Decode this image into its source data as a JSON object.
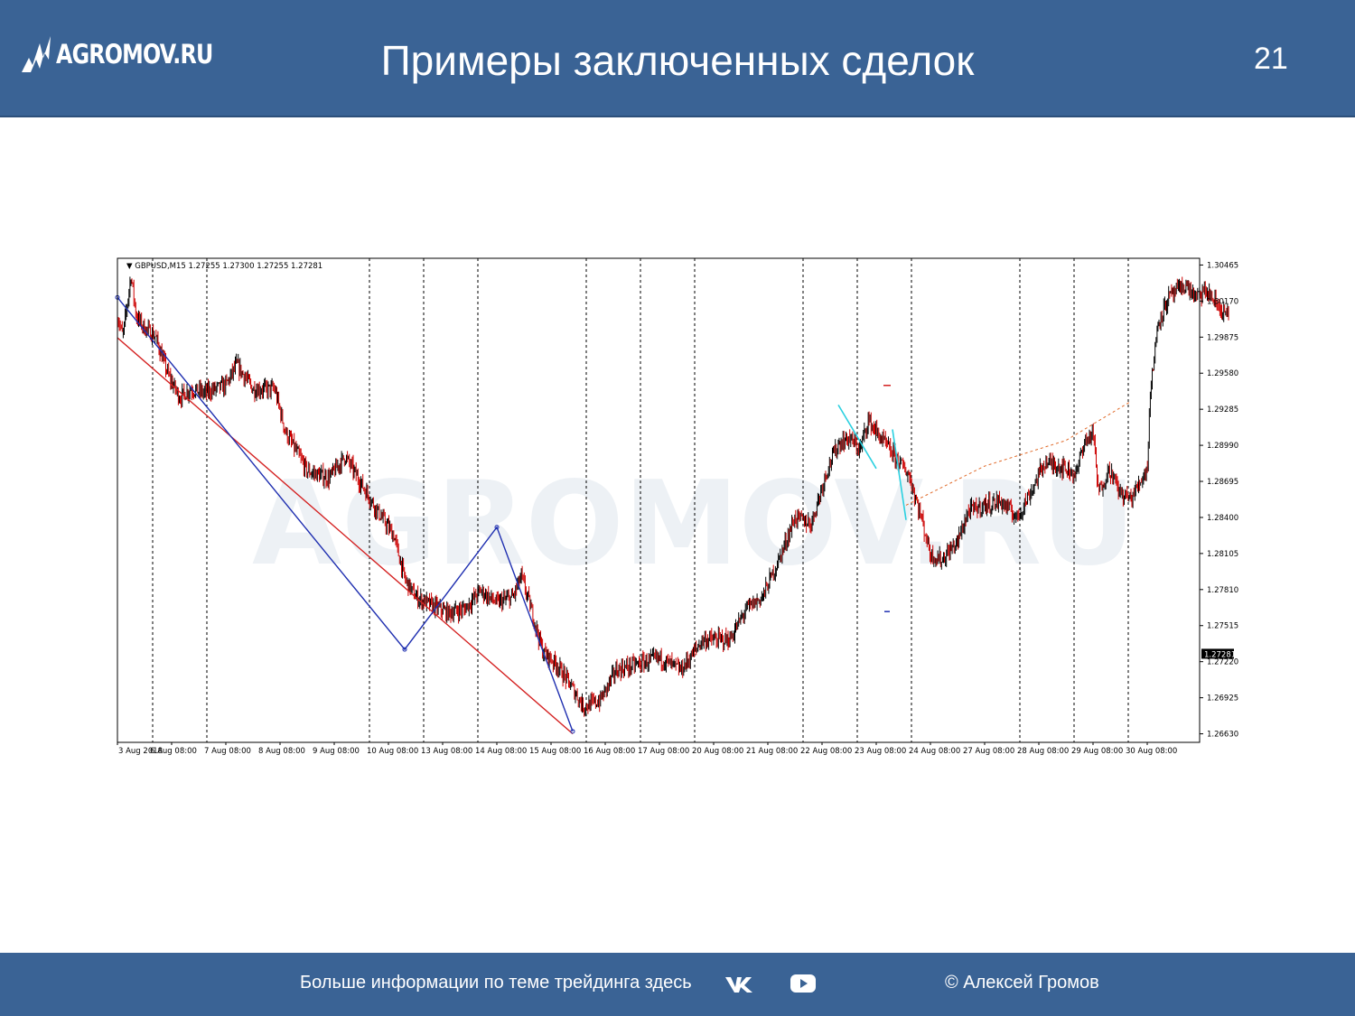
{
  "header": {
    "logo_text": "AGROMOV.RU",
    "title": "Примеры заключенных сделок",
    "page_number": "21"
  },
  "footer": {
    "info_text": "Больше информации по теме трейдинга здесь",
    "copyright": "© Алексей Громов",
    "icons": [
      "vk-icon",
      "youtube-icon"
    ]
  },
  "colors": {
    "header_bg": "#3a6395",
    "candle_up": "#000000",
    "candle_down": "#cc0000",
    "zigzag_blue": "#1f2fb0",
    "trend_red": "#d42020",
    "cyan_line": "#2ad0e0",
    "dashed_arc": "#e06a2a"
  },
  "chart_data": {
    "type": "candlestick",
    "symbol_info": "GBPUSD,M15  1.27255  1.27300  1.27255  1.27281",
    "watermark": "AGROMOV.RU",
    "current_price_label": "1.27281",
    "y_ticks": [
      "1.30465",
      "1.30170",
      "1.29875",
      "1.29580",
      "1.29285",
      "1.28990",
      "1.28695",
      "1.28400",
      "1.28105",
      "1.27810",
      "1.27515",
      "1.27220",
      "1.26925",
      "1.26630"
    ],
    "y_tick_values": [
      1.30465,
      1.3017,
      1.29875,
      1.2958,
      1.29285,
      1.2899,
      1.28695,
      1.284,
      1.28105,
      1.2781,
      1.27515,
      1.2722,
      1.26925,
      1.2663
    ],
    "x_ticks": [
      "3 Aug 2018",
      "6 Aug 08:00",
      "7 Aug 08:00",
      "8 Aug 08:00",
      "9 Aug 08:00",
      "10 Aug 08:00",
      "13 Aug 08:00",
      "14 Aug 08:00",
      "15 Aug 08:00",
      "16 Aug 08:00",
      "17 Aug 08:00",
      "20 Aug 08:00",
      "21 Aug 08:00",
      "22 Aug 08:00",
      "23 Aug 08:00",
      "24 Aug 08:00",
      "27 Aug 08:00",
      "28 Aug 08:00",
      "29 Aug 08:00",
      "30 Aug 08:00"
    ],
    "x_tick_positions": [
      0,
      1,
      2,
      3,
      4,
      5,
      6,
      7,
      8,
      9,
      10,
      11,
      12,
      13,
      14,
      15,
      16,
      17,
      18,
      19
    ],
    "vertical_separators": [
      0.65,
      1.65,
      4.65,
      5.65,
      6.65,
      8.65,
      9.65,
      10.65,
      12.65,
      13.65,
      14.65,
      16.65,
      17.65,
      18.65
    ],
    "price_path": [
      [
        0,
        1.3005
      ],
      [
        0.1,
        1.2988
      ],
      [
        0.25,
        1.3038
      ],
      [
        0.35,
        1.3004
      ],
      [
        0.5,
        1.2995
      ],
      [
        0.7,
        1.2988
      ],
      [
        0.95,
        1.2955
      ],
      [
        1.15,
        1.2938
      ],
      [
        1.35,
        1.2945
      ],
      [
        1.6,
        1.2942
      ],
      [
        2.0,
        1.2948
      ],
      [
        2.2,
        1.2965
      ],
      [
        2.5,
        1.2945
      ],
      [
        2.9,
        1.2945
      ],
      [
        3.1,
        1.291
      ],
      [
        3.5,
        1.2878
      ],
      [
        3.9,
        1.2872
      ],
      [
        4.2,
        1.289
      ],
      [
        4.4,
        1.2875
      ],
      [
        4.8,
        1.2845
      ],
      [
        5.1,
        1.2825
      ],
      [
        5.3,
        1.279
      ],
      [
        5.5,
        1.2775
      ],
      [
        5.8,
        1.2768
      ],
      [
        6.1,
        1.2762
      ],
      [
        6.4,
        1.2765
      ],
      [
        6.7,
        1.278
      ],
      [
        7.0,
        1.277
      ],
      [
        7.3,
        1.2775
      ],
      [
        7.45,
        1.2792
      ],
      [
        7.6,
        1.277
      ],
      [
        7.85,
        1.273
      ],
      [
        8.1,
        1.272
      ],
      [
        8.4,
        1.27
      ],
      [
        8.6,
        1.2685
      ],
      [
        8.9,
        1.269
      ],
      [
        9.2,
        1.2715
      ],
      [
        9.6,
        1.272
      ],
      [
        10.0,
        1.2725
      ],
      [
        10.4,
        1.2715
      ],
      [
        10.8,
        1.274
      ],
      [
        11.3,
        1.274
      ],
      [
        11.6,
        1.2765
      ],
      [
        11.9,
        1.2775
      ],
      [
        12.2,
        1.2805
      ],
      [
        12.5,
        1.284
      ],
      [
        12.8,
        1.2835
      ],
      [
        13.1,
        1.288
      ],
      [
        13.3,
        1.29
      ],
      [
        13.5,
        1.2905
      ],
      [
        13.7,
        1.2895
      ],
      [
        13.85,
        1.292
      ],
      [
        14.0,
        1.291
      ],
      [
        14.3,
        1.2892
      ],
      [
        14.6,
        1.2875
      ],
      [
        14.8,
        1.2845
      ],
      [
        15.0,
        1.281
      ],
      [
        15.2,
        1.2805
      ],
      [
        15.5,
        1.282
      ],
      [
        15.7,
        1.2845
      ],
      [
        16.0,
        1.285
      ],
      [
        16.3,
        1.2853
      ],
      [
        16.6,
        1.284
      ],
      [
        16.9,
        1.2865
      ],
      [
        17.1,
        1.2885
      ],
      [
        17.4,
        1.2882
      ],
      [
        17.7,
        1.2875
      ],
      [
        17.8,
        1.2898
      ],
      [
        18.0,
        1.291
      ],
      [
        18.1,
        1.286
      ],
      [
        18.3,
        1.288
      ],
      [
        18.5,
        1.286
      ],
      [
        18.7,
        1.2855
      ],
      [
        18.9,
        1.2872
      ],
      [
        19.0,
        1.288
      ],
      [
        19.05,
        1.294
      ],
      [
        19.2,
        1.3
      ],
      [
        19.4,
        1.302
      ],
      [
        19.7,
        1.303
      ],
      [
        19.9,
        1.302
      ],
      [
        20.1,
        1.3025
      ],
      [
        20.35,
        1.301
      ],
      [
        20.5,
        1.3005
      ]
    ],
    "drawings": {
      "blue_zigzag": [
        [
          0,
          1.302
        ],
        [
          5.3,
          1.2732
        ],
        [
          7.0,
          1.2832
        ],
        [
          8.4,
          1.2665
        ]
      ],
      "red_trendline": [
        [
          0,
          1.2987
        ],
        [
          8.4,
          1.2663
        ]
      ],
      "cyan_lines": [
        [
          [
            13.3,
            1.2932
          ],
          [
            14.0,
            1.288
          ]
        ],
        [
          [
            14.3,
            1.2912
          ],
          [
            14.55,
            1.2838
          ]
        ]
      ],
      "dashed_arc": [
        [
          14.55,
          1.285
        ],
        [
          16.0,
          1.2882
        ],
        [
          17.5,
          1.2903
        ],
        [
          18.7,
          1.2935
        ]
      ]
    }
  }
}
